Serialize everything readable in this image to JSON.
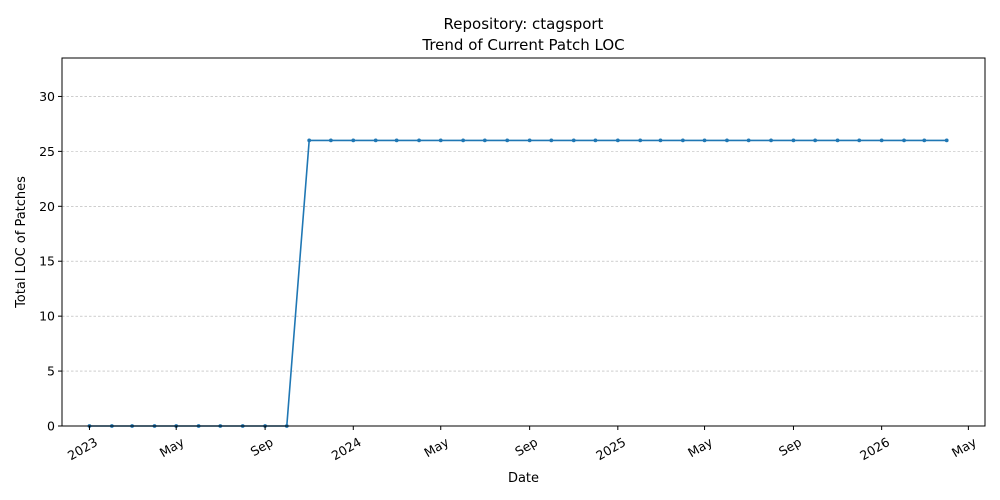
{
  "chart_data": {
    "type": "line",
    "title_line1": "Repository: ctagsport",
    "title_line2": "Trend of Current Patch LOC",
    "xlabel": "Date",
    "ylabel": "Total LOC of Patches",
    "grid": "horizontal-dashed",
    "ylim": [
      0,
      33.5
    ],
    "xlim": [
      "2022-11-24",
      "2026-05-24"
    ],
    "yticks": [
      0,
      5,
      10,
      15,
      20,
      25,
      30
    ],
    "xticks": [
      {
        "date": "2023-01-01",
        "label": "2023"
      },
      {
        "date": "2023-05-01",
        "label": "May"
      },
      {
        "date": "2023-09-01",
        "label": "Sep"
      },
      {
        "date": "2024-01-01",
        "label": "2024"
      },
      {
        "date": "2024-05-01",
        "label": "May"
      },
      {
        "date": "2024-09-01",
        "label": "Sep"
      },
      {
        "date": "2025-01-01",
        "label": "2025"
      },
      {
        "date": "2025-05-01",
        "label": "May"
      },
      {
        "date": "2025-09-01",
        "label": "Sep"
      },
      {
        "date": "2026-01-01",
        "label": "2026"
      },
      {
        "date": "2026-05-01",
        "label": "May"
      }
    ],
    "line_color": "#1f77b4",
    "series": [
      {
        "x": [
          "2023-01-01",
          "2023-02-01",
          "2023-03-01",
          "2023-04-01",
          "2023-05-01",
          "2023-06-01",
          "2023-07-01",
          "2023-08-01",
          "2023-09-01",
          "2023-10-01",
          "2023-11-01",
          "2023-12-01",
          "2024-01-01",
          "2024-02-01",
          "2024-03-01",
          "2024-04-01",
          "2024-05-01",
          "2024-06-01",
          "2024-07-01",
          "2024-08-01",
          "2024-09-01",
          "2024-10-01",
          "2024-11-01",
          "2024-12-01",
          "2025-01-01",
          "2025-02-01",
          "2025-03-01",
          "2025-04-01",
          "2025-05-01",
          "2025-06-01",
          "2025-07-01",
          "2025-08-01",
          "2025-09-01",
          "2025-10-01",
          "2025-11-01",
          "2025-12-01",
          "2026-01-01",
          "2026-02-01",
          "2026-03-01",
          "2026-04-01"
        ],
        "values": [
          0,
          0,
          0,
          0,
          0,
          0,
          0,
          0,
          0,
          0,
          26,
          26,
          26,
          26,
          26,
          26,
          26,
          26,
          26,
          26,
          26,
          26,
          26,
          26,
          26,
          26,
          26,
          26,
          26,
          26,
          26,
          26,
          26,
          26,
          26,
          26,
          26,
          26,
          26,
          26
        ]
      }
    ]
  }
}
